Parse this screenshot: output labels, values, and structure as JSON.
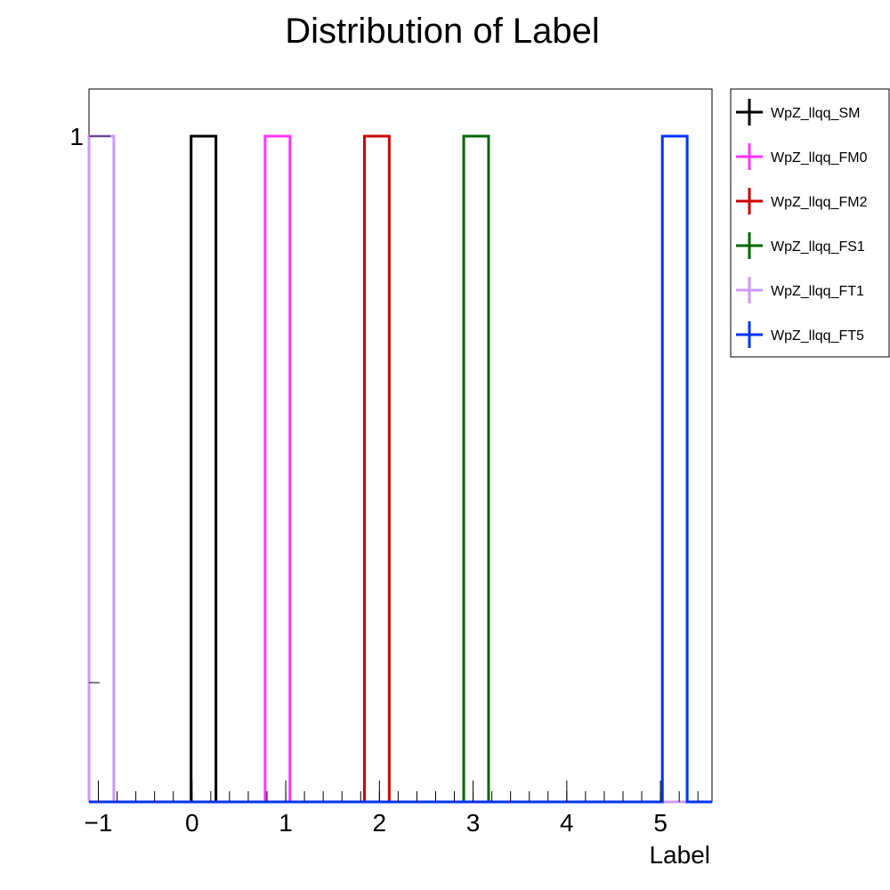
{
  "chart_data": {
    "type": "histogram",
    "title": "Distribution of Label",
    "xlabel": "Label",
    "ylabel": "",
    "xlim": [
      -1.1,
      5.55
    ],
    "ylim": [
      0,
      1.07
    ],
    "y_scale": "log",
    "bin_width": 0.265,
    "x_ticks": [
      {
        "value": -1,
        "label": "−1"
      },
      {
        "value": 0,
        "label": "0"
      },
      {
        "value": 1,
        "label": "1"
      },
      {
        "value": 2,
        "label": "2"
      },
      {
        "value": 3,
        "label": "3"
      },
      {
        "value": 4,
        "label": "4"
      },
      {
        "value": 5,
        "label": "5"
      }
    ],
    "y_ticks": [
      {
        "value": 1,
        "label": "1"
      }
    ],
    "series": [
      {
        "name": "WpZ_llqq_SM",
        "color": "#000000",
        "bin_low": -0.01,
        "value": 1
      },
      {
        "name": "WpZ_llqq_FM0",
        "color": "#ff33ff",
        "bin_low": 0.78,
        "value": 1
      },
      {
        "name": "WpZ_llqq_FM2",
        "color": "#cc0000",
        "bin_low": 1.84,
        "value": 1
      },
      {
        "name": "WpZ_llqq_FS1",
        "color": "#006600",
        "bin_low": 2.9,
        "value": 1
      },
      {
        "name": "WpZ_llqq_FT1",
        "color": "#cc99ff",
        "bin_low": -1.1,
        "value": 1
      },
      {
        "name": "WpZ_llqq_FT5",
        "color": "#0033ff",
        "bin_low": 5.02,
        "value": 1
      }
    ],
    "legend_position": "right"
  }
}
